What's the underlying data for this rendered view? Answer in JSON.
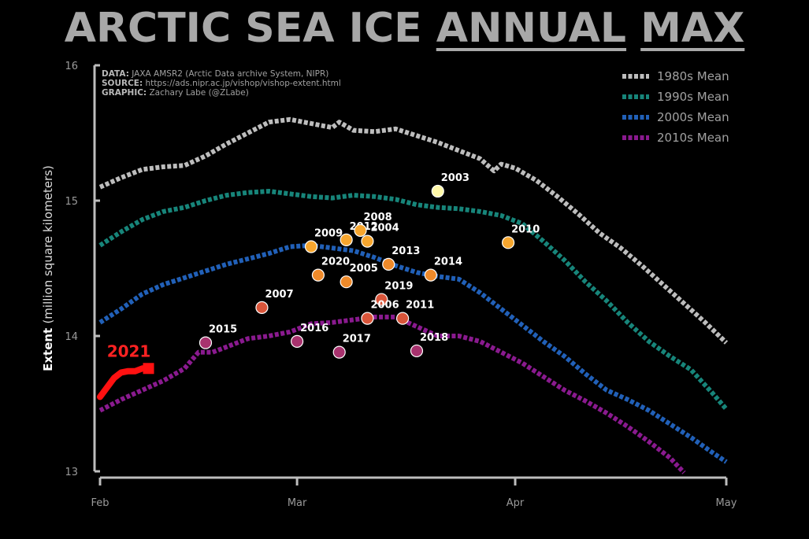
{
  "title": {
    "part1": "ARCTIC SEA ICE",
    "part2": "ANNUAL",
    "part3": "MAX"
  },
  "credits": {
    "data_label": "DATA:",
    "data_text": "JAXA AMSR2 (Arctic Data archive System, NIPR)",
    "source_label": "SOURCE:",
    "source_text": "https://ads.nipr.ac.jp/vishop/vishop-extent.html",
    "graphic_label": "GRAPHIC:",
    "graphic_text": "Zachary Labe (@ZLabe)"
  },
  "chart_data": {
    "type": "line",
    "ylabel_bold": "Extent",
    "ylabel_rest": "(million square kilometers)",
    "xlabel": "",
    "ylim": [
      13,
      16
    ],
    "xlim": [
      0,
      89
    ],
    "x_unit": "days since Feb 1",
    "yticks": [
      13,
      14,
      15,
      16
    ],
    "xticks": [
      {
        "label": "Feb",
        "day": 0
      },
      {
        "label": "Mar",
        "day": 28
      },
      {
        "label": "Apr",
        "day": 59
      },
      {
        "label": "May",
        "day": 89
      }
    ],
    "legend_position": "top-right",
    "series": [
      {
        "name": "1980s Mean",
        "color": "#bdbdbd",
        "style": "dotted",
        "x": [
          0,
          3,
          6,
          9,
          12,
          15,
          18,
          21,
          24,
          27,
          28,
          31,
          33,
          34,
          36,
          39,
          42,
          45,
          48,
          51,
          54,
          56,
          57,
          59,
          62,
          65,
          68,
          71,
          74,
          77,
          80,
          83,
          86,
          89
        ],
        "y": [
          15.1,
          15.17,
          15.23,
          15.25,
          15.26,
          15.33,
          15.42,
          15.5,
          15.58,
          15.6,
          15.59,
          15.56,
          15.54,
          15.58,
          15.52,
          15.51,
          15.53,
          15.48,
          15.43,
          15.37,
          15.31,
          15.22,
          15.27,
          15.24,
          15.15,
          15.03,
          14.9,
          14.76,
          14.65,
          14.52,
          14.38,
          14.24,
          14.1,
          13.95
        ]
      },
      {
        "name": "1990s Mean",
        "color": "#17857a",
        "style": "dotted",
        "x": [
          0,
          3,
          6,
          9,
          12,
          15,
          18,
          21,
          24,
          27,
          30,
          33,
          36,
          39,
          42,
          45,
          48,
          51,
          54,
          57,
          60,
          63,
          66,
          69,
          72,
          75,
          78,
          81,
          84,
          87,
          89
        ],
        "y": [
          14.67,
          14.77,
          14.86,
          14.92,
          14.95,
          15.0,
          15.04,
          15.06,
          15.07,
          15.05,
          15.03,
          15.02,
          15.04,
          15.03,
          15.01,
          14.97,
          14.95,
          14.94,
          14.92,
          14.89,
          14.83,
          14.7,
          14.56,
          14.4,
          14.26,
          14.1,
          13.96,
          13.85,
          13.75,
          13.58,
          13.46
        ]
      },
      {
        "name": "2000s Mean",
        "color": "#2160b8",
        "style": "dotted",
        "x": [
          0,
          3,
          6,
          9,
          12,
          15,
          18,
          21,
          24,
          27,
          30,
          33,
          36,
          39,
          42,
          45,
          48,
          51,
          54,
          57,
          60,
          63,
          66,
          69,
          72,
          75,
          78,
          81,
          84,
          87,
          89
        ],
        "y": [
          14.1,
          14.2,
          14.31,
          14.38,
          14.43,
          14.48,
          14.53,
          14.57,
          14.61,
          14.66,
          14.67,
          14.65,
          14.63,
          14.58,
          14.52,
          14.47,
          14.44,
          14.42,
          14.32,
          14.2,
          14.08,
          13.96,
          13.85,
          13.72,
          13.6,
          13.53,
          13.45,
          13.35,
          13.25,
          13.14,
          13.07
        ]
      },
      {
        "name": "2010s Mean",
        "color": "#8a1a8f",
        "style": "dotted",
        "x": [
          0,
          3,
          6,
          9,
          12,
          14,
          16,
          18,
          21,
          24,
          27,
          30,
          33,
          36,
          39,
          42,
          45,
          48,
          51,
          54,
          57,
          60,
          63,
          66,
          69,
          72,
          75,
          78,
          81,
          83
        ],
        "y": [
          13.45,
          13.53,
          13.6,
          13.67,
          13.76,
          13.88,
          13.88,
          13.92,
          13.98,
          14.0,
          14.03,
          14.09,
          14.1,
          14.12,
          14.14,
          14.14,
          14.07,
          14.0,
          14.0,
          13.96,
          13.88,
          13.8,
          13.7,
          13.6,
          13.52,
          13.43,
          13.33,
          13.22,
          13.1,
          12.99
        ]
      },
      {
        "name": "2021",
        "color": "#ff1111",
        "style": "solid",
        "x": [
          0,
          1,
          2,
          3,
          4,
          5,
          6,
          7
        ],
        "y": [
          13.55,
          13.62,
          13.69,
          13.73,
          13.74,
          13.74,
          13.76,
          13.76
        ]
      }
    ],
    "annotation_2021": {
      "text": "2021",
      "color": "#ff2222"
    },
    "annual_max_points": [
      {
        "year": "2003",
        "day": 48,
        "extent": 15.07,
        "color": "#fff8a8"
      },
      {
        "year": "2010",
        "day": 58,
        "extent": 14.69,
        "color": "#f7a62e"
      },
      {
        "year": "2009",
        "day": 30,
        "extent": 14.66,
        "color": "#f7a62e"
      },
      {
        "year": "2012",
        "day": 35,
        "extent": 14.71,
        "color": "#f7a62e"
      },
      {
        "year": "2008",
        "day": 37,
        "extent": 14.78,
        "color": "#f7a62e"
      },
      {
        "year": "2004",
        "day": 38,
        "extent": 14.7,
        "color": "#f7a62e"
      },
      {
        "year": "2013",
        "day": 41,
        "extent": 14.53,
        "color": "#ef8a2a"
      },
      {
        "year": "2014",
        "day": 47,
        "extent": 14.45,
        "color": "#ef8a2a"
      },
      {
        "year": "2020",
        "day": 31,
        "extent": 14.45,
        "color": "#ef8a2a"
      },
      {
        "year": "2005",
        "day": 35,
        "extent": 14.4,
        "color": "#ef8a2a"
      },
      {
        "year": "2019",
        "day": 40,
        "extent": 14.27,
        "color": "#d9553a"
      },
      {
        "year": "2007",
        "day": 23,
        "extent": 14.21,
        "color": "#d9553a"
      },
      {
        "year": "2006",
        "day": 38,
        "extent": 14.13,
        "color": "#d9553a"
      },
      {
        "year": "2011",
        "day": 43,
        "extent": 14.13,
        "color": "#d9553a"
      },
      {
        "year": "2016",
        "day": 28,
        "extent": 13.96,
        "color": "#a8326e"
      },
      {
        "year": "2015",
        "day": 15,
        "extent": 13.95,
        "color": "#a8326e"
      },
      {
        "year": "2017",
        "day": 34,
        "extent": 13.88,
        "color": "#a8326e"
      },
      {
        "year": "2018",
        "day": 45,
        "extent": 13.89,
        "color": "#a8326e"
      }
    ]
  }
}
